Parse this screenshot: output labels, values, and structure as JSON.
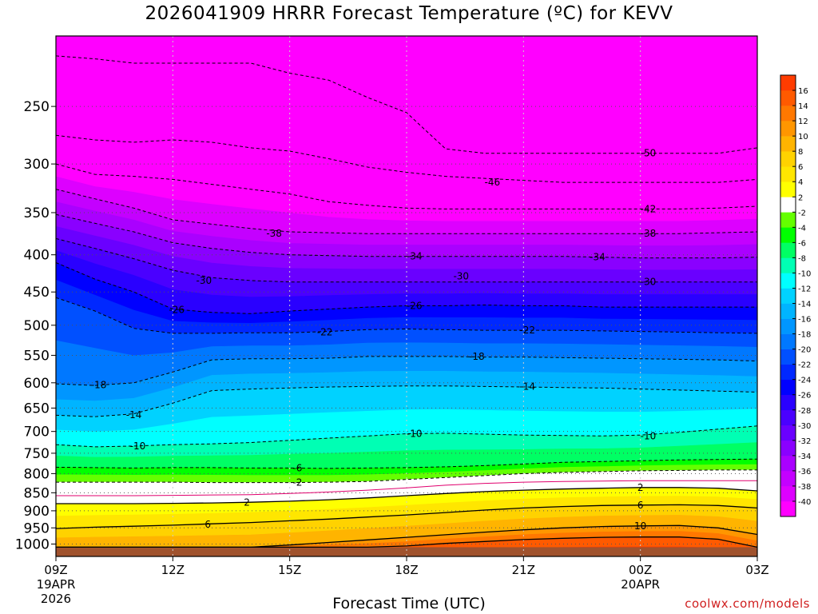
{
  "chart_data": {
    "type": "heatmap",
    "title": "2026041909 HRRR Forecast Temperature (ºC) for KEVV",
    "xlabel": "Forecast Time (UTC)",
    "ylabel": "",
    "credit": "coolwx.com/models",
    "y_axis": {
      "log_scale": true,
      "reversed": true,
      "ylim": [
        1040,
        200
      ],
      "ticks": [
        250,
        300,
        350,
        400,
        450,
        500,
        550,
        600,
        650,
        700,
        750,
        800,
        850,
        900,
        950,
        1000
      ]
    },
    "x_axis": {
      "hours_range": [
        0,
        18
      ],
      "ticks": [
        {
          "hour": 0,
          "label": "09Z",
          "sub1": "19APR",
          "sub2": "2026"
        },
        {
          "hour": 3,
          "label": "12Z",
          "sub1": "",
          "sub2": ""
        },
        {
          "hour": 6,
          "label": "15Z",
          "sub1": "",
          "sub2": ""
        },
        {
          "hour": 9,
          "label": "18Z",
          "sub1": "",
          "sub2": ""
        },
        {
          "hour": 12,
          "label": "21Z",
          "sub1": "",
          "sub2": ""
        },
        {
          "hour": 15,
          "label": "00Z",
          "sub1": "20APR",
          "sub2": ""
        },
        {
          "hour": 18,
          "label": "03Z",
          "sub1": "",
          "sub2": ""
        }
      ]
    },
    "grid": true,
    "ground_level_hpa": 1010,
    "colorbar": {
      "placement": "right",
      "levels": [
        -42,
        -40,
        -38,
        -36,
        -34,
        -32,
        -30,
        -28,
        -26,
        -24,
        -22,
        -20,
        -18,
        -16,
        -14,
        -12,
        -10,
        -8,
        -6,
        -4,
        -2,
        2,
        4,
        6,
        8,
        10,
        12,
        14,
        16,
        18
      ],
      "colors": [
        "#ff00ff",
        "#dd00ff",
        "#c400ff",
        "#aa00ff",
        "#8a00ff",
        "#6a00ff",
        "#4a00ff",
        "#2a00ff",
        "#0000ff",
        "#0028ff",
        "#0050ff",
        "#0078ff",
        "#0096ff",
        "#00b4ff",
        "#00d2ff",
        "#00ffff",
        "#00ffb4",
        "#00ff64",
        "#00ff00",
        "#64ff00",
        "#ffffff",
        "#ffff00",
        "#ffe600",
        "#ffd200",
        "#ffb400",
        "#ff9600",
        "#ff7800",
        "#ff5a00",
        "#ff3c00"
      ],
      "tick_labels": [
        "-40",
        "-38",
        "-36",
        "-34",
        "-32",
        "-30",
        "-28",
        "-26",
        "-24",
        "-22",
        "-20",
        "-18",
        "-16",
        "-14",
        "-12",
        "-10",
        "-8",
        "-6",
        "-4",
        "-2",
        "2",
        "4",
        "6",
        "8",
        "10",
        "12",
        "14",
        "16"
      ]
    },
    "hours": [
      0,
      1,
      2,
      3,
      4,
      5,
      6,
      7,
      8,
      9,
      10,
      11,
      12,
      13,
      14,
      15,
      16,
      17,
      18
    ],
    "isotherms": [
      {
        "t": -50,
        "p": [
          213,
          215,
          218,
          218,
          218,
          218,
          225,
          230,
          243,
          255,
          286,
          290,
          290,
          290,
          290,
          290,
          290,
          290,
          285
        ]
      },
      {
        "t": -46,
        "p": [
          274,
          278,
          280,
          278,
          280,
          285,
          288,
          295,
          303,
          308,
          312,
          314,
          316,
          318,
          318,
          318,
          318,
          318,
          315
        ]
      },
      {
        "t": -42,
        "p": [
          300,
          310,
          312,
          315,
          320,
          325,
          330,
          338,
          342,
          345,
          346,
          346,
          346,
          346,
          346,
          346,
          346,
          345,
          343
        ]
      },
      {
        "t": -38,
        "p": [
          325,
          335,
          345,
          358,
          363,
          368,
          372,
          373,
          374,
          374,
          374,
          374,
          374,
          374,
          374,
          374,
          374,
          373,
          372
        ]
      },
      {
        "t": -34,
        "p": [
          352,
          362,
          372,
          385,
          392,
          397,
          400,
          401,
          402,
          402,
          402,
          402,
          402,
          402,
          403,
          404,
          404,
          404,
          403
        ]
      },
      {
        "t": -30,
        "p": [
          380,
          392,
          405,
          420,
          430,
          434,
          436,
          436,
          436,
          436,
          436,
          436,
          436,
          436,
          436,
          436,
          436,
          436,
          436
        ]
      },
      {
        "t": -26,
        "p": [
          410,
          432,
          450,
          475,
          480,
          482,
          478,
          475,
          472,
          470,
          470,
          469,
          470,
          470,
          472,
          472,
          472,
          472,
          472
        ]
      },
      {
        "t": -22,
        "p": [
          458,
          478,
          505,
          513,
          513,
          512,
          512,
          510,
          507,
          506,
          507,
          508,
          508,
          508,
          509,
          510,
          511,
          512,
          513
        ]
      },
      {
        "t": -18,
        "p": [
          602,
          605,
          600,
          580,
          558,
          556,
          556,
          555,
          552,
          552,
          552,
          553,
          553,
          554,
          555,
          556,
          557,
          558,
          560
        ]
      },
      {
        "t": -14,
        "p": [
          665,
          668,
          662,
          640,
          615,
          612,
          610,
          608,
          607,
          606,
          606,
          607,
          608,
          609,
          610,
          612,
          614,
          616,
          618
        ]
      },
      {
        "t": -10,
        "p": [
          730,
          735,
          733,
          730,
          728,
          725,
          720,
          715,
          710,
          705,
          704,
          706,
          708,
          709,
          710,
          708,
          702,
          695,
          688
        ]
      },
      {
        "t": -6,
        "p": [
          784,
          785,
          786,
          785,
          785,
          786,
          786,
          787,
          786,
          785,
          783,
          780,
          776,
          772,
          770,
          768,
          766,
          765,
          764
        ]
      },
      {
        "t": -2,
        "p": [
          822,
          822,
          822,
          822,
          823,
          823,
          823,
          822,
          820,
          815,
          810,
          805,
          800,
          797,
          795,
          793,
          792,
          791,
          791
        ]
      },
      {
        "t": 0,
        "p": [
          858,
          858,
          858,
          857,
          856,
          855,
          852,
          848,
          843,
          837,
          830,
          825,
          822,
          820,
          819,
          818,
          818,
          818,
          818
        ]
      },
      {
        "t": 2,
        "p": [
          880,
          880,
          880,
          879,
          878,
          876,
          873,
          869,
          864,
          858,
          852,
          847,
          843,
          840,
          838,
          836,
          836,
          838,
          845
        ]
      },
      {
        "t": 6,
        "p": [
          952,
          948,
          945,
          942,
          938,
          934,
          929,
          924,
          918,
          912,
          905,
          898,
          892,
          888,
          885,
          884,
          883,
          885,
          892
        ]
      },
      {
        "t": 10,
        "p": [
          1010,
          1010,
          1010,
          1010,
          1010,
          1010,
          1003,
          995,
          987,
          979,
          971,
          963,
          956,
          950,
          946,
          944,
          943,
          950,
          970
        ]
      },
      {
        "t": 14,
        "p": [
          1010,
          1010,
          1010,
          1010,
          1010,
          1010,
          1010,
          1010,
          1010,
          1006,
          998,
          992,
          986,
          982,
          979,
          978,
          978,
          985,
          1010
        ]
      }
    ],
    "contour_labels": [
      {
        "text": "-50",
        "hour": 15.2,
        "p": 290
      },
      {
        "text": "-46",
        "hour": 11.2,
        "p": 318
      },
      {
        "text": "-42",
        "hour": 15.2,
        "p": 346
      },
      {
        "text": "-38",
        "hour": 5.6,
        "p": 374
      },
      {
        "text": "-38",
        "hour": 15.2,
        "p": 374
      },
      {
        "text": "-34",
        "hour": 9.2,
        "p": 402
      },
      {
        "text": "-34",
        "hour": 13.9,
        "p": 403
      },
      {
        "text": "-30",
        "hour": 3.8,
        "p": 434
      },
      {
        "text": "-30",
        "hour": 10.4,
        "p": 428
      },
      {
        "text": "-30",
        "hour": 15.2,
        "p": 436
      },
      {
        "text": "-26",
        "hour": 3.1,
        "p": 476
      },
      {
        "text": "-26",
        "hour": 9.2,
        "p": 470
      },
      {
        "text": "-22",
        "hour": 6.9,
        "p": 511
      },
      {
        "text": "-22",
        "hour": 12.1,
        "p": 508
      },
      {
        "text": "-18",
        "hour": 1.1,
        "p": 604
      },
      {
        "text": "-18",
        "hour": 10.8,
        "p": 552
      },
      {
        "text": "-14",
        "hour": 2.0,
        "p": 664
      },
      {
        "text": "-14",
        "hour": 12.1,
        "p": 607
      },
      {
        "text": "-10",
        "hour": 2.1,
        "p": 733
      },
      {
        "text": "-10",
        "hour": 9.2,
        "p": 705
      },
      {
        "text": "-10",
        "hour": 15.2,
        "p": 710
      },
      {
        "text": "-6",
        "hour": 6.2,
        "p": 786
      },
      {
        "text": "-2",
        "hour": 6.2,
        "p": 823
      },
      {
        "text": "2",
        "hour": 4.9,
        "p": 877
      },
      {
        "text": "2",
        "hour": 15.0,
        "p": 836
      },
      {
        "text": "6",
        "hour": 3.9,
        "p": 940
      },
      {
        "text": "6",
        "hour": 15.0,
        "p": 884
      },
      {
        "text": "10",
        "hour": 15.0,
        "p": 944
      }
    ]
  }
}
